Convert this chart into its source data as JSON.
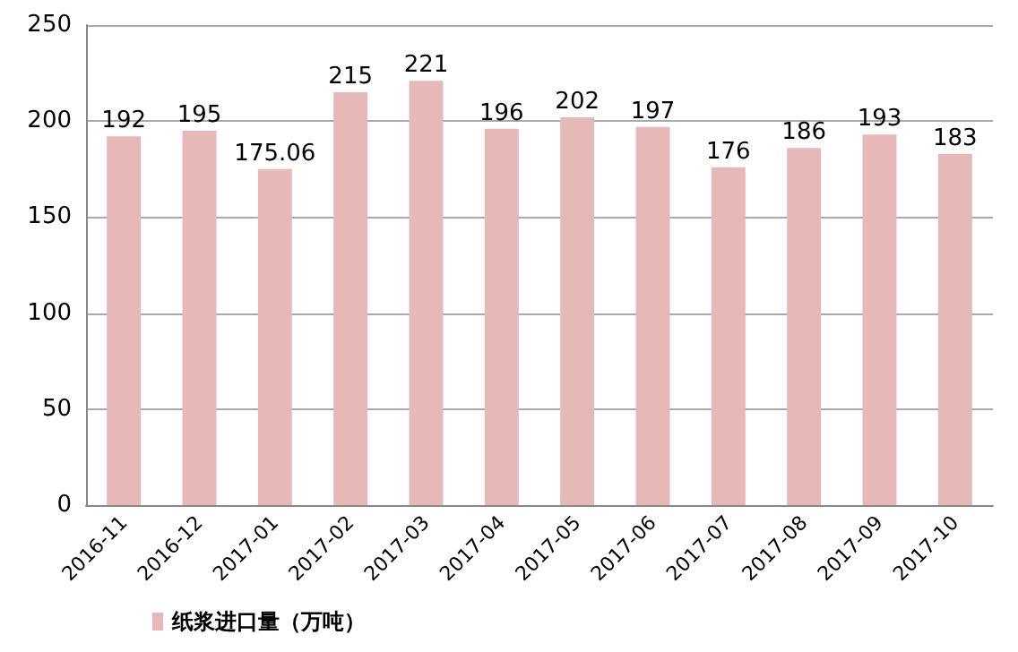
{
  "chart_data": {
    "type": "bar",
    "categories": [
      "2016-11",
      "2016-12",
      "2017-01",
      "2017-02",
      "2017-03",
      "2017-04",
      "2017-05",
      "2017-06",
      "2017-07",
      "2017-08",
      "2017-09",
      "2017-10"
    ],
    "series": [
      {
        "name": "纸浆进口量（万吨）",
        "color": "#e6b9b8",
        "values": [
          192,
          195,
          175.06,
          215,
          221,
          196,
          202,
          197,
          176,
          186,
          193,
          183
        ]
      }
    ],
    "ylim": [
      0,
      250
    ],
    "yticks": [
      0,
      50,
      100,
      150,
      200,
      250
    ],
    "grid": "y",
    "legend": "bottom",
    "data_labels": true
  }
}
